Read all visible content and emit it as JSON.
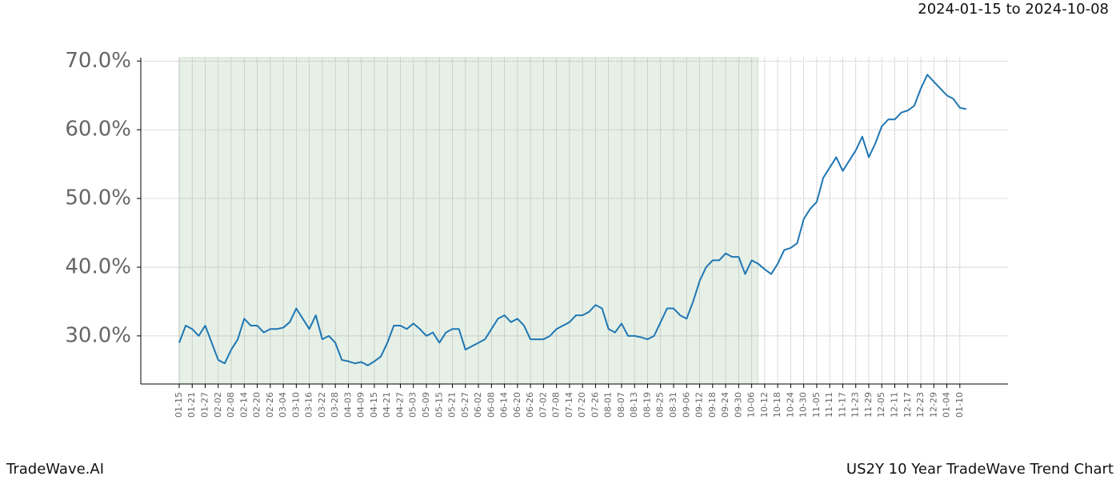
{
  "chart_data": {
    "type": "line",
    "title": "US2Y 10 Year TradeWave Trend Chart",
    "subtitle": "2024-01-15 to 2024-10-08",
    "brand": "TradeWave.AI",
    "color": "#1f77b4",
    "shade_color": "#e6f0e6",
    "shaded_range": [
      0,
      89
    ],
    "grid": true,
    "categories": [
      "01-15",
      null,
      "01-21",
      null,
      "01-27",
      null,
      "02-02",
      null,
      "02-08",
      null,
      "02-14",
      null,
      "02-20",
      null,
      "02-26",
      null,
      "03-04",
      null,
      "03-10",
      null,
      "03-16",
      null,
      "03-22",
      null,
      "03-28",
      null,
      "04-03",
      null,
      "04-09",
      null,
      "04-15",
      null,
      "04-21",
      null,
      "04-27",
      null,
      "05-03",
      null,
      "05-09",
      null,
      "05-15",
      null,
      "05-21",
      null,
      "05-27",
      null,
      "06-02",
      null,
      "06-08",
      null,
      "06-14",
      null,
      "06-20",
      null,
      "06-26",
      null,
      "07-02",
      null,
      "07-08",
      null,
      "07-14",
      null,
      "07-20",
      null,
      "07-26",
      null,
      "08-01",
      null,
      "08-07",
      null,
      "08-13",
      null,
      "08-19",
      null,
      "08-25",
      null,
      "08-31",
      null,
      "09-06",
      null,
      "09-12",
      null,
      "09-18",
      null,
      "09-24",
      null,
      "09-30",
      null,
      "10-06",
      null,
      "10-12",
      null,
      "10-18",
      null,
      "10-24",
      null,
      "10-30",
      null,
      "11-05",
      null,
      "11-11",
      null,
      "11-17",
      null,
      "11-23",
      null,
      "11-29",
      null,
      "12-05",
      null,
      "12-11",
      null,
      "12-17",
      null,
      "12-23",
      null,
      "12-29",
      null,
      "01-04",
      null,
      "01-10",
      null
    ],
    "values": [
      29,
      31.5,
      31,
      30,
      31.5,
      29,
      26.5,
      26,
      28,
      29.5,
      32.5,
      31.5,
      31.5,
      30.5,
      31,
      31,
      31.2,
      32,
      34,
      32.5,
      31,
      33,
      29.5,
      30,
      29,
      26.5,
      26.3,
      26,
      26.2,
      25.7,
      26.3,
      27,
      29,
      31.5,
      31.5,
      31,
      31.8,
      31,
      30,
      30.5,
      29,
      30.5,
      31,
      31,
      28,
      28.5,
      29,
      29.5,
      31,
      32.5,
      33,
      32,
      32.5,
      31.5,
      29.5,
      29.5,
      29.5,
      30,
      31,
      31.5,
      32,
      33,
      33,
      33.5,
      34.5,
      34,
      31,
      30.5,
      31.8,
      30,
      30,
      29.8,
      29.5,
      30,
      32,
      34,
      34,
      33,
      32.5,
      35,
      38,
      40,
      41,
      41,
      42,
      41.5,
      41.5,
      39,
      41,
      40.5,
      39.7,
      39,
      40.5,
      42.5,
      42.8,
      43.5,
      47,
      48.5,
      49.5,
      53,
      54.5,
      56,
      54,
      55.5,
      57,
      59,
      56,
      58,
      60.5,
      61.5,
      61.5,
      62.5,
      62.8,
      63.5,
      66,
      68,
      67,
      66,
      65,
      64.5,
      63.2,
      63
    ],
    "ylim": [
      23,
      70.5
    ],
    "yticks": [
      {
        "value": 30,
        "label": "30.0%"
      },
      {
        "value": 40,
        "label": "40.0%"
      },
      {
        "value": 50,
        "label": "50.0%"
      },
      {
        "value": 60,
        "label": "60.0%"
      },
      {
        "value": 70,
        "label": "70.0%"
      }
    ]
  }
}
